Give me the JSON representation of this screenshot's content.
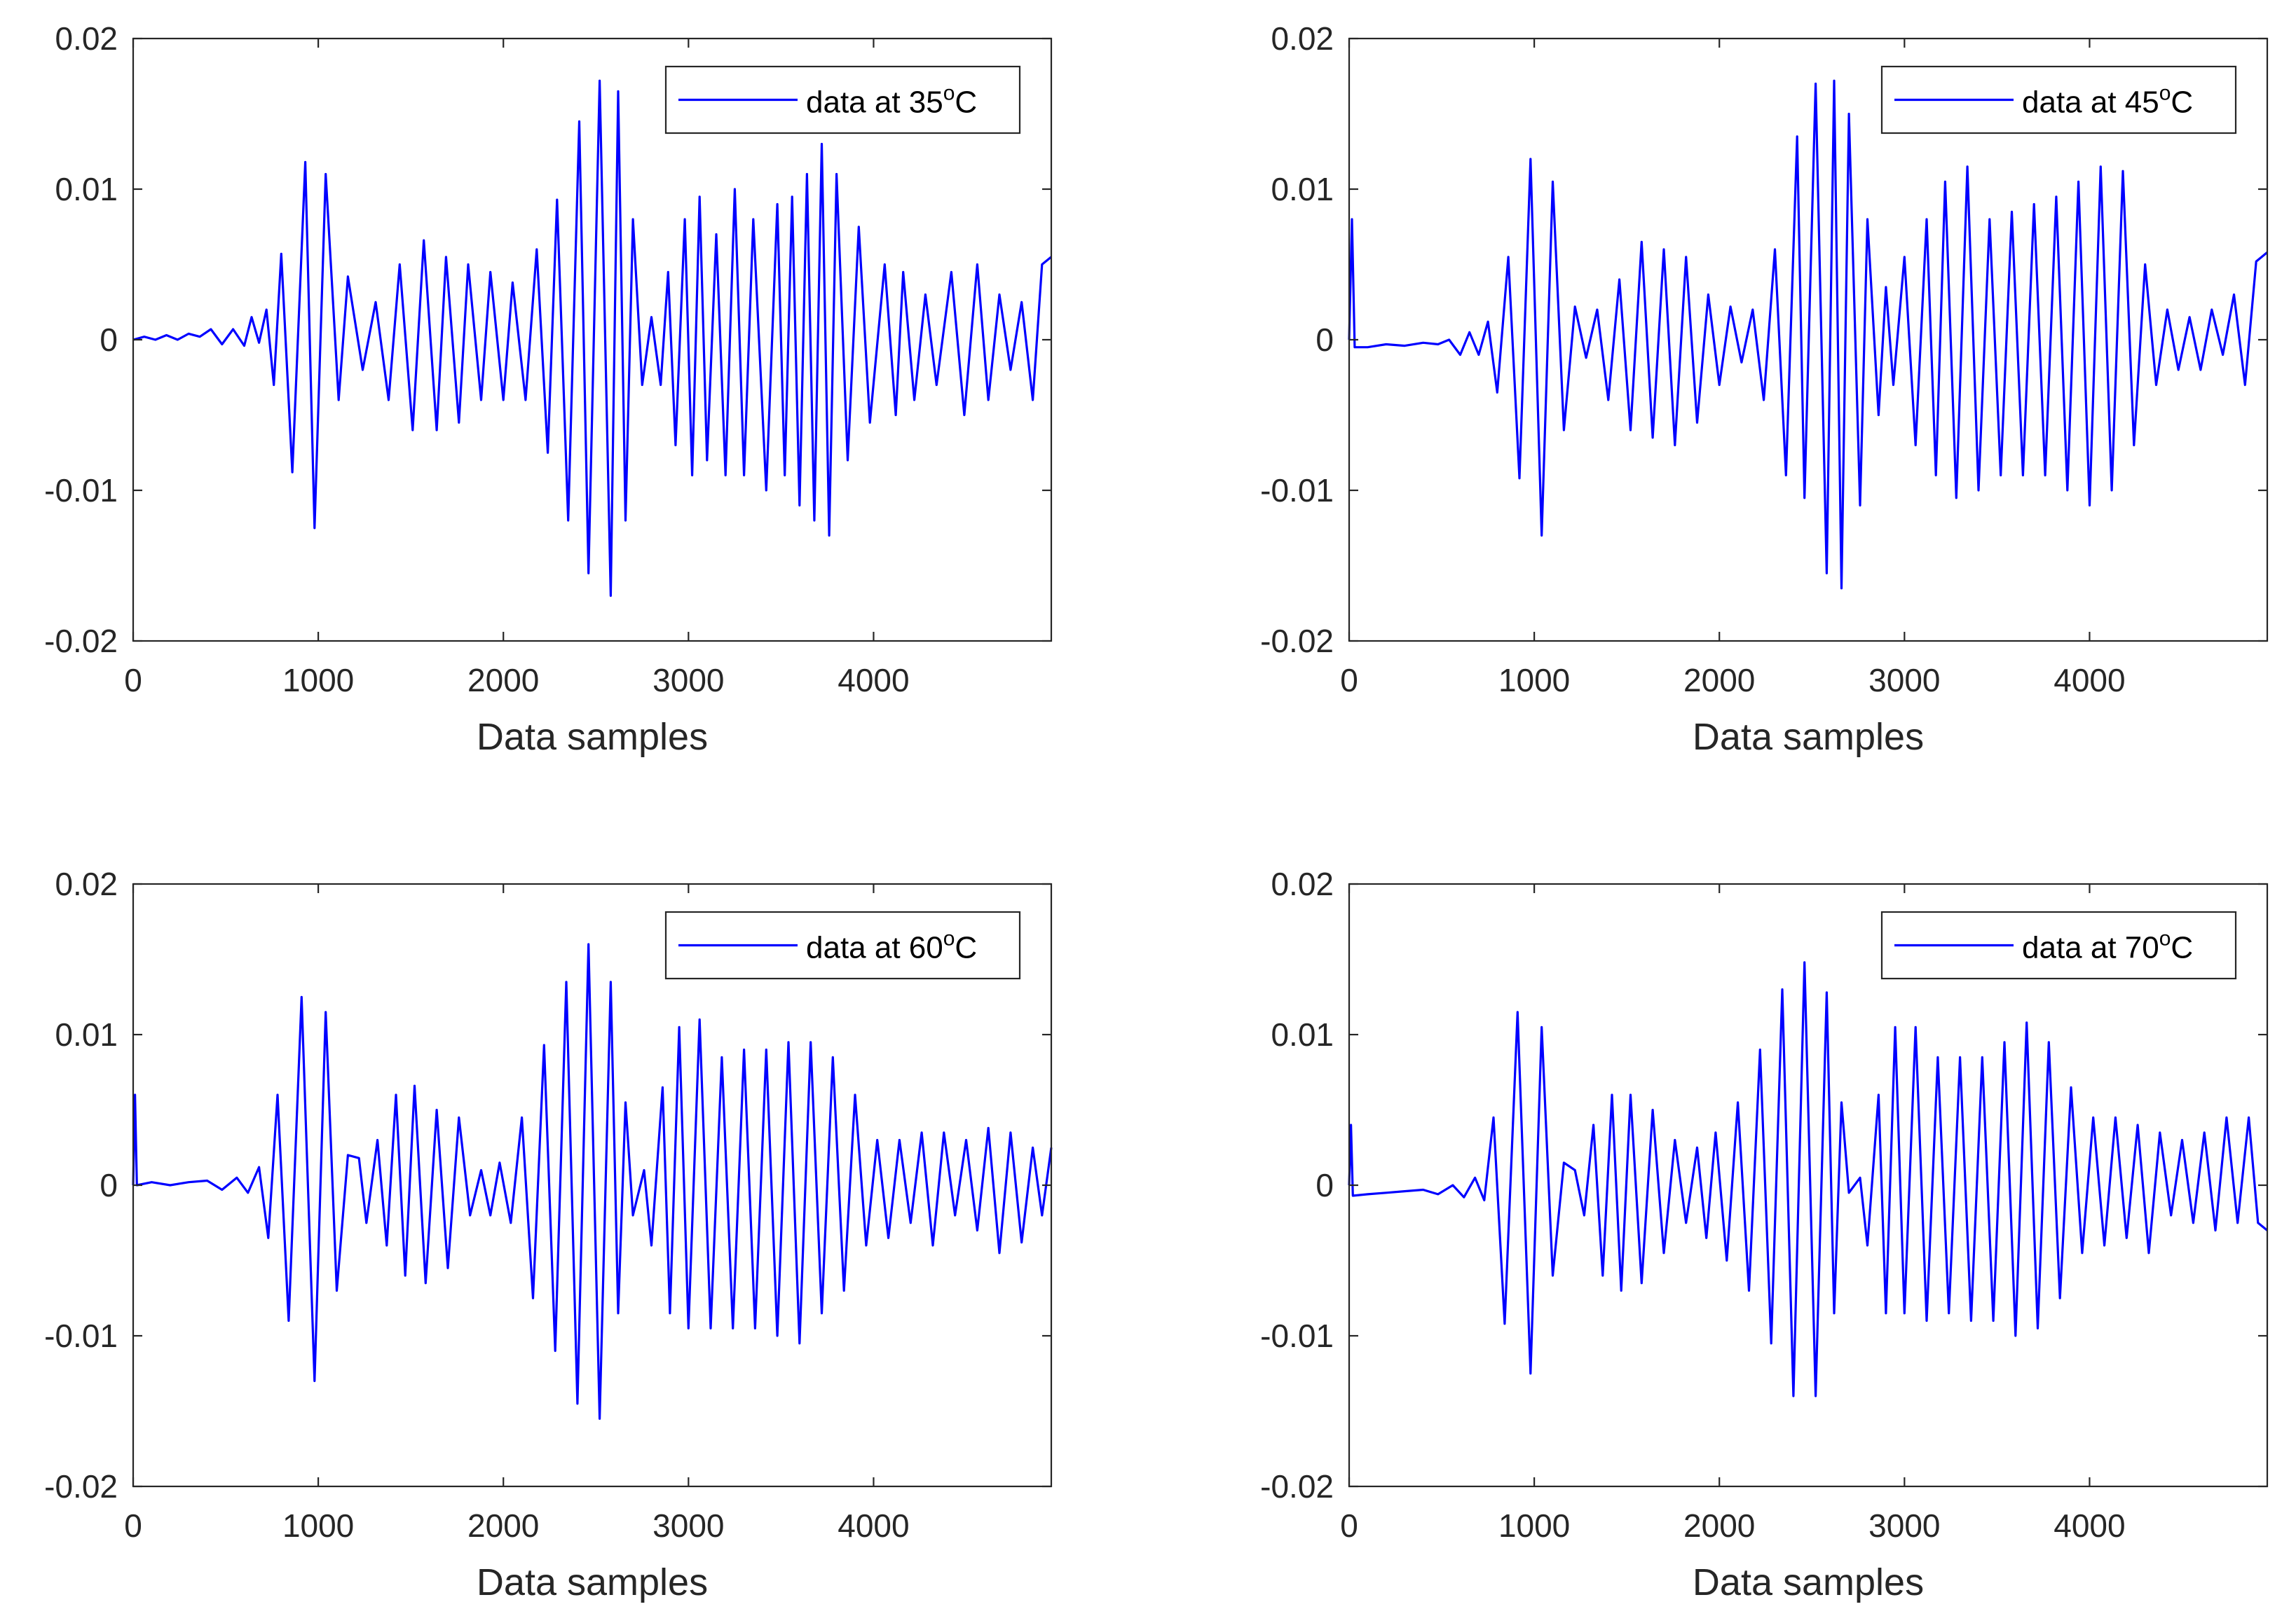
{
  "chart_data": [
    {
      "type": "line",
      "xlabel": "Data samples",
      "ylabel": "",
      "xlim": [
        0,
        4960
      ],
      "ylim": [
        -0.02,
        0.02
      ],
      "xticks": [
        0,
        1000,
        2000,
        3000,
        4000
      ],
      "xtick_labels": [
        "0",
        "1000",
        "2000",
        "3000",
        "4000"
      ],
      "yticks": [
        0.02,
        0.01,
        0,
        -0.01,
        -0.02
      ],
      "ytick_labels": [
        "0.02",
        "0.01",
        "0",
        "-0.01",
        "-0.02"
      ],
      "legend": {
        "prefix": "data at ",
        "temperature": "35",
        "degree": "o",
        "unit": "C",
        "location": "top-right"
      },
      "series": [
        {
          "name": "data at 35°C",
          "color": "#0000ff",
          "x": [
            0,
            60,
            120,
            180,
            240,
            300,
            360,
            420,
            480,
            540,
            600,
            640,
            680,
            720,
            760,
            800,
            860,
            930,
            980,
            1040,
            1110,
            1160,
            1240,
            1310,
            1380,
            1440,
            1510,
            1570,
            1640,
            1690,
            1760,
            1810,
            1880,
            1930,
            2000,
            2050,
            2120,
            2180,
            2240,
            2290,
            2350,
            2410,
            2460,
            2520,
            2580,
            2620,
            2660,
            2700,
            2750,
            2800,
            2850,
            2890,
            2930,
            2980,
            3020,
            3060,
            3100,
            3150,
            3200,
            3250,
            3300,
            3350,
            3420,
            3480,
            3520,
            3560,
            3600,
            3640,
            3680,
            3720,
            3760,
            3800,
            3860,
            3920,
            3980,
            4060,
            4120,
            4160,
            4220,
            4280,
            4340,
            4420,
            4490,
            4560,
            4620,
            4680,
            4740,
            4800,
            4860,
            4910,
            4960
          ],
          "values": [
            0,
            0.0002,
            0,
            0.0003,
            0,
            0.0004,
            0.0002,
            0.0007,
            -0.0003,
            0.0007,
            -0.0004,
            0.0015,
            -0.0002,
            0.002,
            -0.003,
            0.0057,
            -0.0088,
            0.0118,
            -0.0125,
            0.011,
            -0.004,
            0.0042,
            -0.002,
            0.0025,
            -0.004,
            0.005,
            -0.006,
            0.0066,
            -0.006,
            0.0055,
            -0.0055,
            0.005,
            -0.004,
            0.0045,
            -0.004,
            0.0038,
            -0.004,
            0.006,
            -0.0075,
            0.0093,
            -0.012,
            0.0145,
            -0.0155,
            0.0172,
            -0.017,
            0.0165,
            -0.012,
            0.008,
            -0.003,
            0.0015,
            -0.003,
            0.0045,
            -0.007,
            0.008,
            -0.009,
            0.0095,
            -0.008,
            0.007,
            -0.009,
            0.01,
            -0.009,
            0.008,
            -0.01,
            0.009,
            -0.009,
            0.0095,
            -0.011,
            0.011,
            -0.012,
            0.013,
            -0.013,
            0.011,
            -0.008,
            0.0075,
            -0.0055,
            0.005,
            -0.005,
            0.0045,
            -0.004,
            0.003,
            -0.003,
            0.0045,
            -0.005,
            0.005,
            -0.004,
            0.003,
            -0.002,
            0.0025,
            -0.004,
            0.005,
            0.0055
          ]
        }
      ]
    },
    {
      "type": "line",
      "xlabel": "Data samples",
      "ylabel": "",
      "xlim": [
        0,
        4960
      ],
      "ylim": [
        -0.02,
        0.02
      ],
      "xticks": [
        0,
        1000,
        2000,
        3000,
        4000
      ],
      "xtick_labels": [
        "0",
        "1000",
        "2000",
        "3000",
        "4000"
      ],
      "yticks": [
        0.02,
        0.01,
        0,
        -0.01,
        -0.02
      ],
      "ytick_labels": [
        "0.02",
        "0.01",
        "0",
        "-0.01",
        "-0.02"
      ],
      "legend": {
        "prefix": "data at ",
        "temperature": "45",
        "degree": "o",
        "unit": "C",
        "location": "top-right"
      },
      "series": [
        {
          "name": "data at 45°C",
          "color": "#0000ff",
          "x": [
            0,
            15,
            30,
            100,
            200,
            300,
            400,
            480,
            540,
            600,
            650,
            700,
            750,
            800,
            860,
            920,
            980,
            1040,
            1100,
            1160,
            1220,
            1280,
            1340,
            1400,
            1460,
            1520,
            1580,
            1640,
            1700,
            1760,
            1820,
            1880,
            1940,
            2000,
            2060,
            2120,
            2180,
            2240,
            2300,
            2360,
            2420,
            2460,
            2520,
            2580,
            2620,
            2660,
            2700,
            2760,
            2800,
            2860,
            2900,
            2940,
            3000,
            3060,
            3120,
            3170,
            3220,
            3280,
            3340,
            3400,
            3460,
            3520,
            3580,
            3640,
            3700,
            3760,
            3820,
            3880,
            3940,
            4000,
            4060,
            4120,
            4180,
            4240,
            4300,
            4360,
            4420,
            4480,
            4540,
            4600,
            4660,
            4720,
            4780,
            4840,
            4900,
            4960
          ],
          "values": [
            0,
            0.008,
            -0.0005,
            -0.0005,
            -0.0003,
            -0.0004,
            -0.0002,
            -0.0003,
            0,
            -0.001,
            0.0005,
            -0.001,
            0.0012,
            -0.0035,
            0.0055,
            -0.0092,
            0.012,
            -0.013,
            0.0105,
            -0.006,
            0.0022,
            -0.0012,
            0.002,
            -0.004,
            0.004,
            -0.006,
            0.0065,
            -0.0065,
            0.006,
            -0.007,
            0.0055,
            -0.0055,
            0.003,
            -0.003,
            0.0022,
            -0.0015,
            0.002,
            -0.004,
            0.006,
            -0.009,
            0.0135,
            -0.0105,
            0.017,
            -0.0155,
            0.0172,
            -0.0165,
            0.015,
            -0.011,
            0.008,
            -0.005,
            0.0035,
            -0.003,
            0.0055,
            -0.007,
            0.008,
            -0.009,
            0.0105,
            -0.0105,
            0.0115,
            -0.01,
            0.008,
            -0.009,
            0.0085,
            -0.009,
            0.009,
            -0.009,
            0.0095,
            -0.01,
            0.0105,
            -0.011,
            0.0115,
            -0.01,
            0.0112,
            -0.007,
            0.005,
            -0.003,
            0.002,
            -0.002,
            0.0015,
            -0.002,
            0.002,
            -0.001,
            0.003,
            -0.003,
            0.0052,
            0.0058
          ]
        }
      ]
    },
    {
      "type": "line",
      "xlabel": "Data samples",
      "ylabel": "",
      "xlim": [
        0,
        4960
      ],
      "ylim": [
        -0.02,
        0.02
      ],
      "xticks": [
        0,
        1000,
        2000,
        3000,
        4000
      ],
      "xtick_labels": [
        "0",
        "1000",
        "2000",
        "3000",
        "4000"
      ],
      "yticks": [
        0.02,
        0.01,
        0,
        -0.01,
        -0.02
      ],
      "ytick_labels": [
        "0.02",
        "0.01",
        "0",
        "-0.01",
        "-0.02"
      ],
      "legend": {
        "prefix": "data at ",
        "temperature": "60",
        "degree": "o",
        "unit": "C",
        "location": "top-right"
      },
      "series": [
        {
          "name": "data at 60°C",
          "color": "#0000ff",
          "x": [
            0,
            10,
            20,
            100,
            200,
            300,
            400,
            480,
            560,
            620,
            680,
            730,
            780,
            840,
            910,
            980,
            1040,
            1100,
            1160,
            1220,
            1260,
            1320,
            1370,
            1420,
            1470,
            1520,
            1580,
            1640,
            1700,
            1760,
            1820,
            1880,
            1930,
            1980,
            2040,
            2100,
            2160,
            2220,
            2280,
            2340,
            2400,
            2460,
            2520,
            2580,
            2620,
            2660,
            2700,
            2760,
            2800,
            2860,
            2900,
            2950,
            3000,
            3060,
            3120,
            3180,
            3240,
            3300,
            3360,
            3420,
            3480,
            3540,
            3600,
            3660,
            3720,
            3780,
            3840,
            3900,
            3960,
            4020,
            4080,
            4140,
            4200,
            4260,
            4320,
            4380,
            4440,
            4500,
            4560,
            4620,
            4680,
            4740,
            4800,
            4860,
            4910,
            4960
          ],
          "values": [
            0,
            0.006,
            0,
            0.0002,
            0,
            0.0002,
            0.0003,
            -0.0003,
            0.0005,
            -0.0005,
            0.0012,
            -0.0035,
            0.006,
            -0.009,
            0.0125,
            -0.013,
            0.0115,
            -0.007,
            0.002,
            0.0018,
            -0.0025,
            0.003,
            -0.004,
            0.006,
            -0.006,
            0.0066,
            -0.0065,
            0.005,
            -0.0055,
            0.0045,
            -0.002,
            0.001,
            -0.002,
            0.0015,
            -0.0025,
            0.0045,
            -0.0075,
            0.0093,
            -0.011,
            0.0135,
            -0.0145,
            0.016,
            -0.0155,
            0.0135,
            -0.0085,
            0.0055,
            -0.002,
            0.001,
            -0.004,
            0.0065,
            -0.0085,
            0.0105,
            -0.0095,
            0.011,
            -0.0095,
            0.0085,
            -0.0095,
            0.009,
            -0.0095,
            0.009,
            -0.01,
            0.0095,
            -0.0105,
            0.0095,
            -0.0085,
            0.0085,
            -0.007,
            0.006,
            -0.004,
            0.003,
            -0.0035,
            0.003,
            -0.0025,
            0.0035,
            -0.004,
            0.0035,
            -0.002,
            0.003,
            -0.003,
            0.0038,
            -0.0045,
            0.0035,
            -0.0038,
            0.0025,
            -0.002,
            0.0025
          ]
        }
      ]
    },
    {
      "type": "line",
      "xlabel": "Data samples",
      "ylabel": "",
      "xlim": [
        0,
        4960
      ],
      "ylim": [
        -0.02,
        0.02
      ],
      "xticks": [
        0,
        1000,
        2000,
        3000,
        4000
      ],
      "xtick_labels": [
        "0",
        "1000",
        "2000",
        "3000",
        "4000"
      ],
      "yticks": [
        0.02,
        0.01,
        0,
        -0.01,
        -0.02
      ],
      "ytick_labels": [
        "0.02",
        "0.01",
        "0",
        "-0.01",
        "-0.02"
      ],
      "legend": {
        "prefix": "data at ",
        "temperature": "70",
        "degree": "o",
        "unit": "C",
        "location": "top-right"
      },
      "series": [
        {
          "name": "data at 70°C",
          "color": "#0000ff",
          "x": [
            0,
            10,
            20,
            100,
            200,
            300,
            400,
            480,
            560,
            620,
            680,
            730,
            780,
            840,
            910,
            980,
            1040,
            1100,
            1160,
            1220,
            1270,
            1320,
            1370,
            1420,
            1470,
            1520,
            1580,
            1640,
            1700,
            1760,
            1820,
            1880,
            1930,
            1980,
            2040,
            2100,
            2160,
            2220,
            2280,
            2340,
            2400,
            2460,
            2520,
            2580,
            2620,
            2660,
            2700,
            2760,
            2800,
            2860,
            2900,
            2950,
            3000,
            3060,
            3120,
            3180,
            3240,
            3300,
            3360,
            3420,
            3480,
            3540,
            3600,
            3660,
            3720,
            3780,
            3840,
            3900,
            3960,
            4020,
            4080,
            4140,
            4200,
            4260,
            4320,
            4380,
            4440,
            4500,
            4560,
            4620,
            4680,
            4740,
            4800,
            4860,
            4910,
            4960
          ],
          "values": [
            0,
            0.004,
            -0.0007,
            -0.0006,
            -0.0005,
            -0.0004,
            -0.0003,
            -0.0006,
            0,
            -0.0008,
            0.0005,
            -0.001,
            0.0045,
            -0.0092,
            0.0115,
            -0.0125,
            0.0105,
            -0.006,
            0.0015,
            0.001,
            -0.002,
            0.004,
            -0.006,
            0.006,
            -0.007,
            0.006,
            -0.0065,
            0.005,
            -0.0045,
            0.003,
            -0.0025,
            0.0025,
            -0.0035,
            0.0035,
            -0.005,
            0.0055,
            -0.007,
            0.009,
            -0.0105,
            0.013,
            -0.014,
            0.0148,
            -0.014,
            0.0128,
            -0.0085,
            0.0055,
            -0.0005,
            0.0005,
            -0.004,
            0.006,
            -0.0085,
            0.0105,
            -0.0085,
            0.0105,
            -0.009,
            0.0085,
            -0.0085,
            0.0085,
            -0.009,
            0.0085,
            -0.009,
            0.0095,
            -0.01,
            0.0108,
            -0.0095,
            0.0095,
            -0.0075,
            0.0065,
            -0.0045,
            0.0045,
            -0.004,
            0.0045,
            -0.0035,
            0.004,
            -0.0045,
            0.0035,
            -0.002,
            0.003,
            -0.0025,
            0.0035,
            -0.003,
            0.0045,
            -0.0025,
            0.0045,
            -0.0025,
            -0.003
          ]
        }
      ]
    }
  ]
}
